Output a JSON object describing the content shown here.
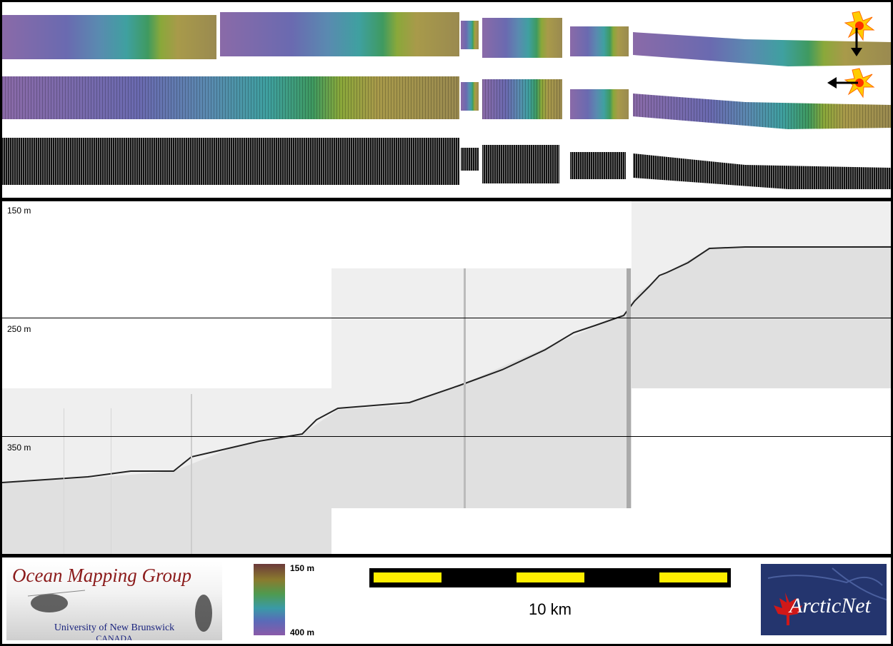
{
  "profile": {
    "depth_labels": [
      "150 m",
      "250 m",
      "350 m"
    ]
  },
  "legend": {
    "colorbar_top": "150 m",
    "colorbar_bottom": "400 m",
    "scale_label": "10 km"
  },
  "logos": {
    "omg_title": "Ocean Mapping Group",
    "omg_university": "University of New Brunswick",
    "omg_country": "CANADA",
    "arcticnet": "ArcticNet"
  },
  "icons": [
    "sun-icon",
    "arrow-down-icon",
    "arrow-left-icon",
    "maple-leaf-icon"
  ],
  "colors": {
    "scale_bar_yellow": "#ffee00",
    "omg_title": "#8b1a1a",
    "arcticnet_bg": "#24356e",
    "maple_leaf": "#d01818"
  }
}
